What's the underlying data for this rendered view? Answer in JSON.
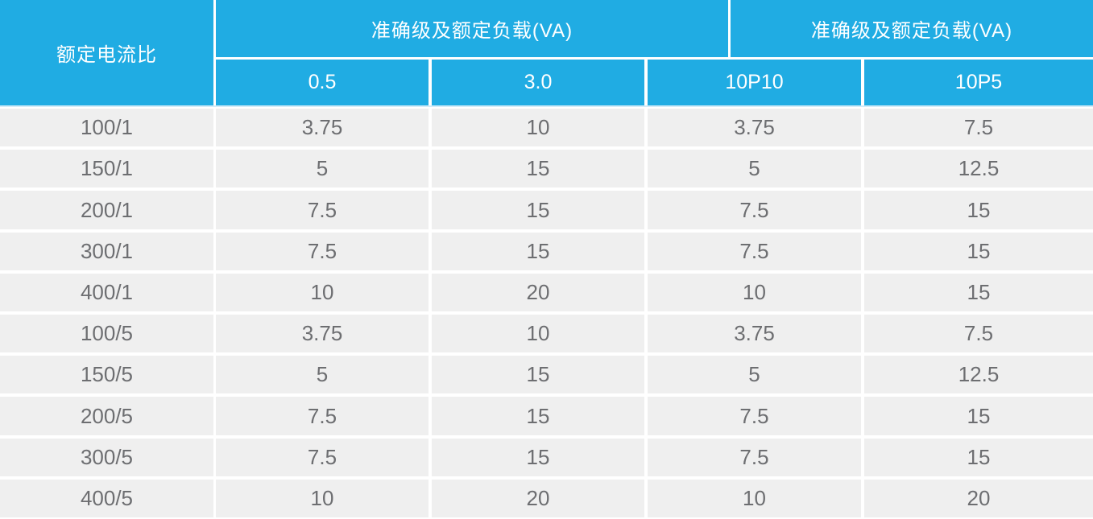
{
  "table": {
    "corner_header": "额定电流比",
    "group_headers": [
      "准确级及额定负载(VA)",
      "准确级及额定负载(VA)"
    ],
    "sub_headers": [
      "0.5",
      "3.0",
      "10P10",
      "10P5"
    ],
    "rows": [
      {
        "ratio": "100/1",
        "values": [
          "3.75",
          "10",
          "3.75",
          "7.5"
        ]
      },
      {
        "ratio": "150/1",
        "values": [
          "5",
          "15",
          "5",
          "12.5"
        ]
      },
      {
        "ratio": "200/1",
        "values": [
          "7.5",
          "15",
          "7.5",
          "15"
        ]
      },
      {
        "ratio": "300/1",
        "values": [
          "7.5",
          "15",
          "7.5",
          "15"
        ]
      },
      {
        "ratio": "400/1",
        "values": [
          "10",
          "20",
          "10",
          "15"
        ]
      },
      {
        "ratio": "100/5",
        "values": [
          "3.75",
          "10",
          "3.75",
          "7.5"
        ]
      },
      {
        "ratio": "150/5",
        "values": [
          "5",
          "15",
          "5",
          "12.5"
        ]
      },
      {
        "ratio": "200/5",
        "values": [
          "7.5",
          "15",
          "7.5",
          "15"
        ]
      },
      {
        "ratio": "300/5",
        "values": [
          "7.5",
          "15",
          "7.5",
          "15"
        ]
      },
      {
        "ratio": "400/5",
        "values": [
          "10",
          "20",
          "10",
          "20"
        ]
      }
    ],
    "colors": {
      "header_bg": "#20ace3",
      "header_text": "#ffffff",
      "row_bg": "#efefef",
      "row_gap": "#ffffff",
      "body_text": "#6d6e71",
      "header_underline": "#d3ecf8"
    }
  },
  "chart_data": {
    "type": "table",
    "title": "",
    "corner_label": "额定电流比",
    "column_groups": [
      {
        "label": "准确级及额定负载(VA)",
        "columns": [
          "0.5",
          "3.0"
        ]
      },
      {
        "label": "准确级及额定负载(VA)",
        "columns": [
          "10P10",
          "10P5"
        ]
      }
    ],
    "columns": [
      "额定电流比",
      "0.5",
      "3.0",
      "10P10",
      "10P5"
    ],
    "rows": [
      [
        "100/1",
        3.75,
        10,
        3.75,
        7.5
      ],
      [
        "150/1",
        5,
        15,
        5,
        12.5
      ],
      [
        "200/1",
        7.5,
        15,
        7.5,
        15
      ],
      [
        "300/1",
        7.5,
        15,
        7.5,
        15
      ],
      [
        "400/1",
        10,
        20,
        10,
        15
      ],
      [
        "100/5",
        3.75,
        10,
        3.75,
        7.5
      ],
      [
        "150/5",
        5,
        15,
        5,
        12.5
      ],
      [
        "200/5",
        7.5,
        15,
        7.5,
        15
      ],
      [
        "300/5",
        7.5,
        15,
        7.5,
        15
      ],
      [
        "400/5",
        10,
        20,
        10,
        20
      ]
    ]
  }
}
